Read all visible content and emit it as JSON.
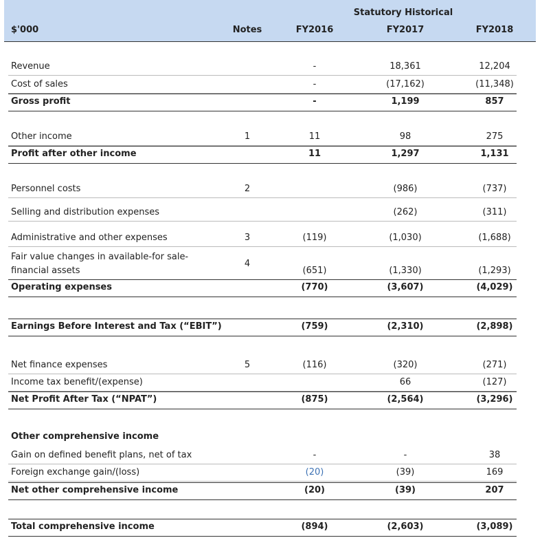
{
  "header": {
    "unit": "$'000",
    "group": "Statutory Historical",
    "columns": [
      "Notes",
      "FY2016",
      "FY2017",
      "FY2018"
    ]
  },
  "rows": [
    {
      "label": "Revenue",
      "note": null,
      "values": [
        "-",
        "18,361",
        "12,204"
      ],
      "bold": false
    },
    {
      "label": "Cost of sales",
      "note": null,
      "values": [
        "-",
        "(17,162)",
        "(11,348)"
      ],
      "bold": false
    },
    {
      "label": "Gross profit",
      "note": null,
      "values": [
        "-",
        "1,199",
        "857"
      ],
      "bold": true
    },
    {
      "label": "Other income",
      "note": "1",
      "values": [
        "11",
        "98",
        "275"
      ],
      "bold": false
    },
    {
      "label": "Profit after other income",
      "note": null,
      "values": [
        "11",
        "1,297",
        "1,131"
      ],
      "bold": true
    },
    {
      "label": "Personnel costs",
      "note": "2",
      "values": [
        null,
        "(986)",
        "(737)"
      ],
      "bold": false
    },
    {
      "label": "Selling and distribution expenses",
      "note": null,
      "values": [
        null,
        "(262)",
        "(311)"
      ],
      "bold": false
    },
    {
      "label": "Administrative and other expenses",
      "note": "3",
      "values": [
        "(119)",
        "(1,030)",
        "(1,688)"
      ],
      "bold": false
    },
    {
      "label": "Fair value changes in available-for sale-\nfinancial assets",
      "note": "4",
      "values": [
        "(651)",
        "(1,330)",
        "(1,293)"
      ],
      "bold": false
    },
    {
      "label": "Operating expenses",
      "note": null,
      "values": [
        "(770)",
        "(3,607)",
        "(4,029)"
      ],
      "bold": true
    },
    {
      "label": "Earnings Before Interest and Tax (“EBIT”)",
      "note": null,
      "values": [
        "(759)",
        "(2,310)",
        "(2,898)"
      ],
      "bold": true
    },
    {
      "label": "Net finance expenses",
      "note": "5",
      "values": [
        "(116)",
        "(320)",
        "(271)"
      ],
      "bold": false
    },
    {
      "label": "Income tax benefit/(expense)",
      "note": null,
      "values": [
        null,
        "66",
        "(127)"
      ],
      "bold": false
    },
    {
      "label": "Net Profit After Tax (“NPAT”)",
      "note": null,
      "values": [
        "(875)",
        "(2,564)",
        "(3,296)"
      ],
      "bold": true
    },
    {
      "label": "Other comprehensive income",
      "note": null,
      "values": [
        null,
        null,
        null
      ],
      "bold": true
    },
    {
      "label": "Gain on defined benefit plans, net of tax",
      "note": null,
      "values": [
        "-",
        "-",
        "38"
      ],
      "bold": false
    },
    {
      "label": "Foreign exchange gain/(loss)",
      "note": null,
      "values": [
        "(20)",
        "(39)",
        "169"
      ],
      "bold": false
    },
    {
      "label": "Net other comprehensive income",
      "note": null,
      "values": [
        "(20)",
        "(39)",
        "207"
      ],
      "bold": true
    },
    {
      "label": "Total comprehensive income",
      "note": null,
      "values": [
        "(894)",
        "(2,603)",
        "(3,089)"
      ],
      "bold": true
    }
  ]
}
